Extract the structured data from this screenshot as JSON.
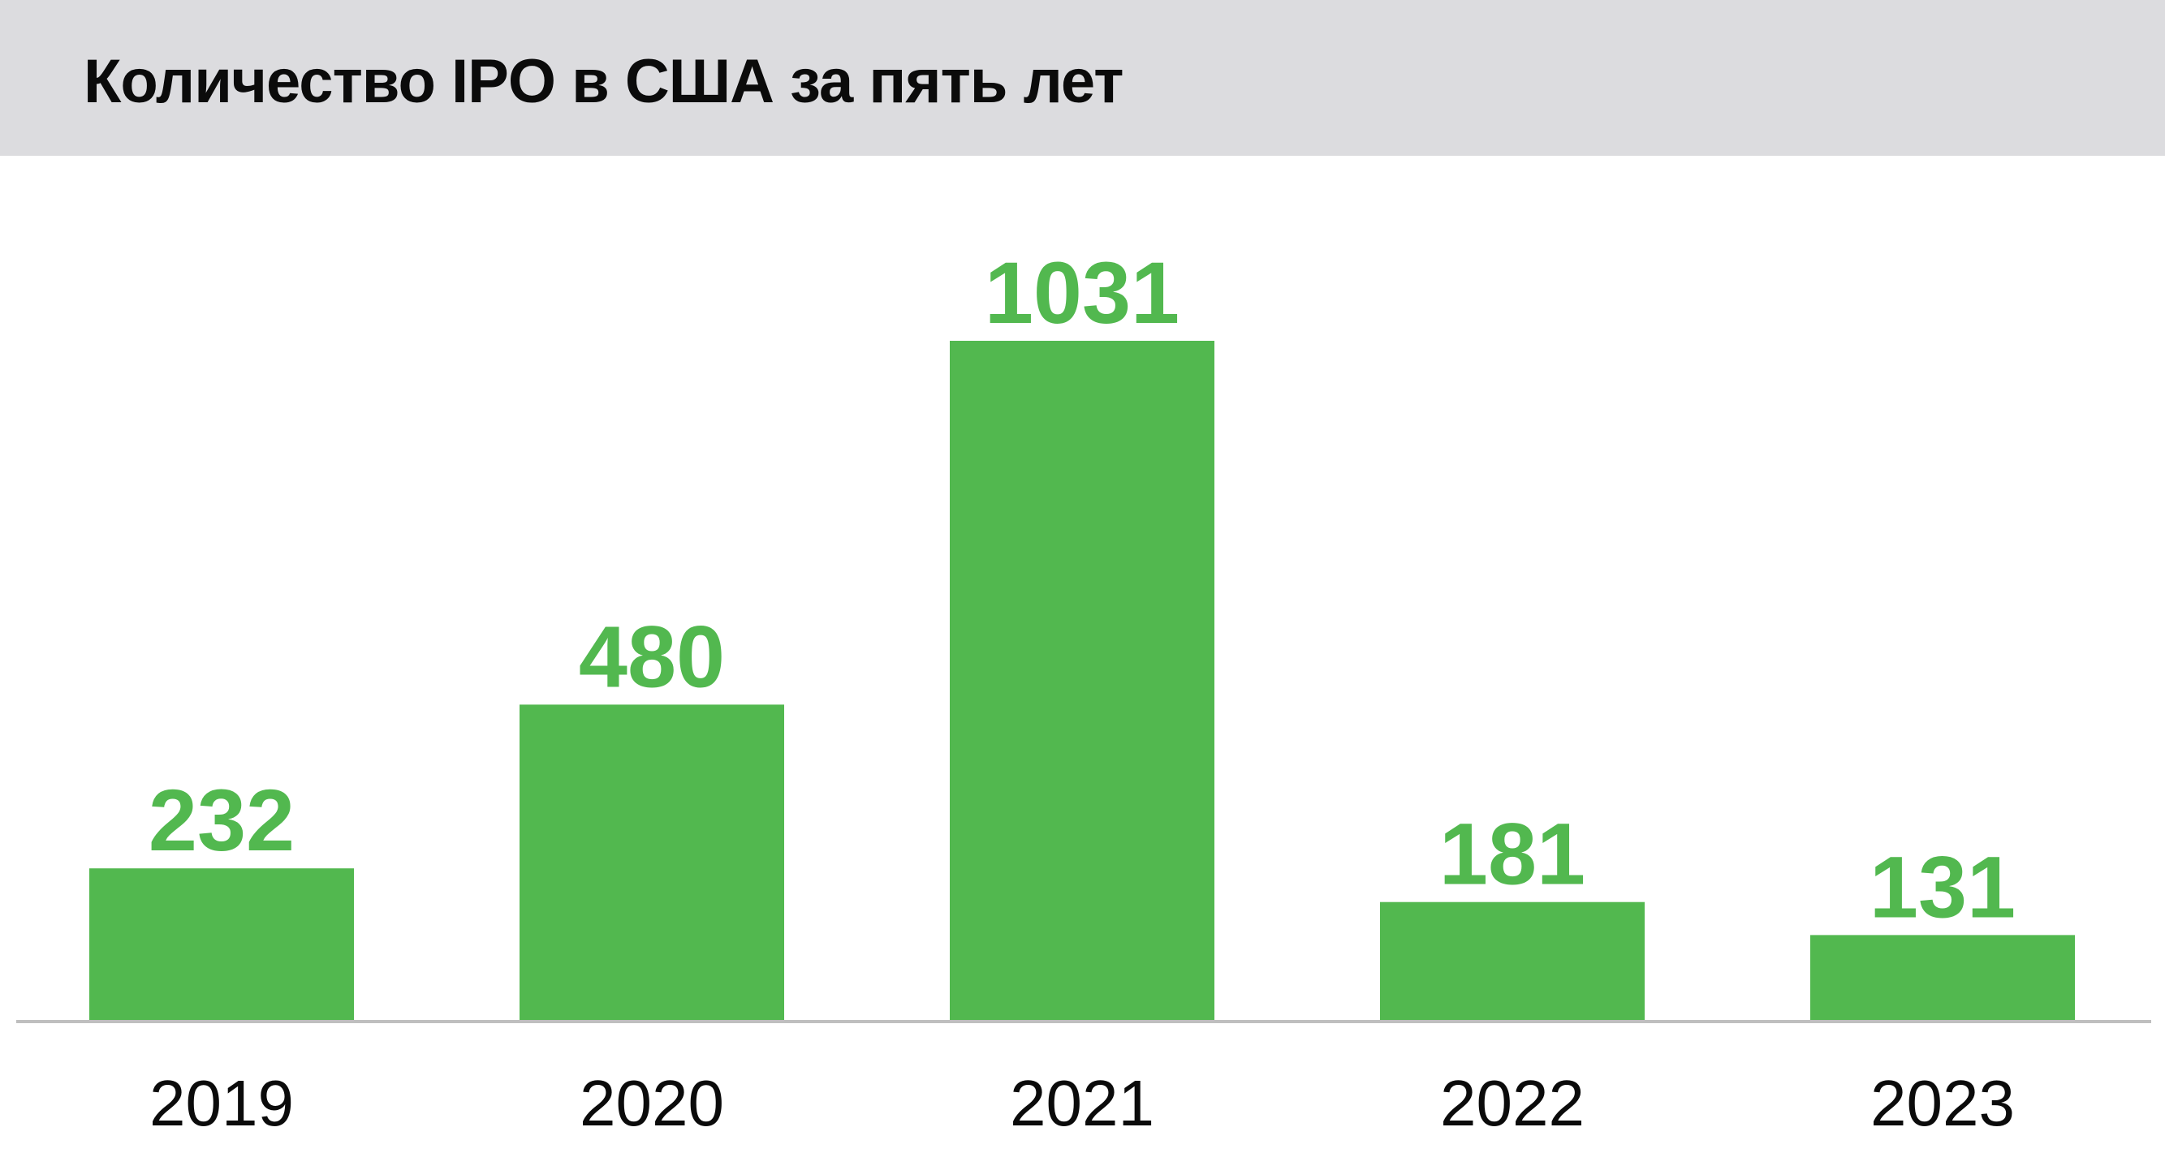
{
  "title": "Количество IPO в США за пять лет",
  "colors": {
    "header_bg": "#dcdcdf",
    "bar": "#52b84f",
    "value_text": "#52b84f",
    "axis": "#bfbfbf",
    "tick_text": "#0b0b0b"
  },
  "chart_data": {
    "type": "bar",
    "title": "Количество IPO в США за пять лет",
    "categories": [
      "2019",
      "2020",
      "2021",
      "2022",
      "2023"
    ],
    "values": [
      232,
      480,
      1031,
      181,
      131
    ],
    "xlabel": "",
    "ylabel": "",
    "ylim": [
      0,
      1031
    ],
    "grid": false,
    "legend": "none",
    "data_labels": true
  }
}
